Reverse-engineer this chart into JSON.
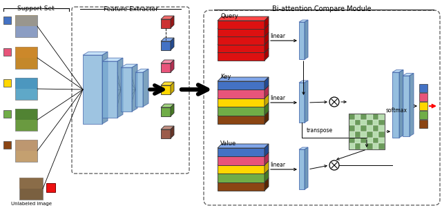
{
  "title_support": "Support Set",
  "title_feature": "Feature Extractor",
  "title_biattention": "Bi-attention Compare Module",
  "label_query": "Query",
  "label_key": "Key",
  "label_value": "Value",
  "label_linear1": "linear",
  "label_linear2": "linear",
  "label_linear3": "linear",
  "label_transpose": "transpose",
  "label_softmax": "softmax",
  "label_unlabeled": "Unlabeled image",
  "colors_support": [
    "#4472C4",
    "#E8547A",
    "#FFD700",
    "#70AD47",
    "#8B4513"
  ],
  "colors_kv": [
    "#4472C4",
    "#E8547A",
    "#FFD700",
    "#70AD47",
    "#8B4513"
  ],
  "color_query_red": "#DD1111",
  "color_blue_panel": "#7EB0D8",
  "color_bg": "#FFFFFF",
  "img_colors": [
    "#8B9DC3",
    "#C4882A",
    "#5FA8C8",
    "#6A9A40",
    "#C4A070"
  ],
  "cube_colors": [
    "#CC3333",
    "#4472C4",
    "#E8547A",
    "#FFD700",
    "#70AD47"
  ],
  "cube_brown": "#9B5B4A",
  "chk_dark": "#6A9A5A",
  "chk_light": "#B8DDB0"
}
